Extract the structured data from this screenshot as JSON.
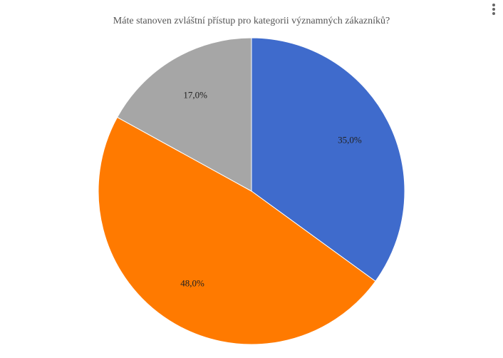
{
  "chart_data": {
    "type": "pie",
    "title": "Máte stanoven zvláštní přístup pro kategorii významných zákazníků?",
    "values": [
      35.0,
      48.0,
      17.0
    ],
    "value_labels": [
      "35,0%",
      "48,0%",
      "17,0%"
    ],
    "colors": [
      "#3f6bcc",
      "#ff7a00",
      "#a6a6a6"
    ]
  }
}
